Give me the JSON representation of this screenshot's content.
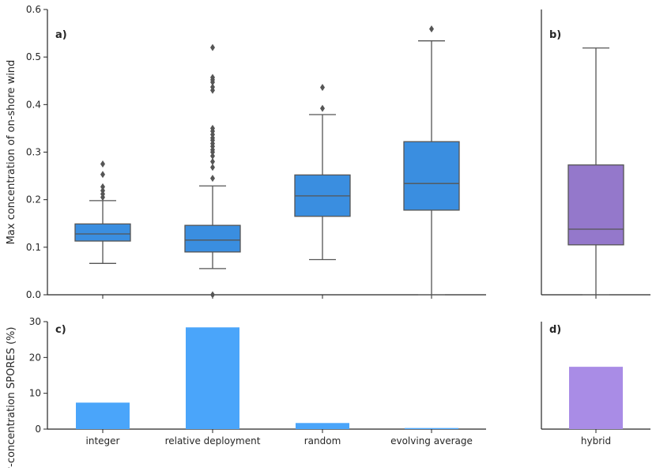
{
  "chart_data": [
    {
      "id": "a",
      "type": "box",
      "panel_label": "a)",
      "ylabel": "Max concentration of on-shore wind",
      "ylim": [
        0,
        0.6
      ],
      "yticks": [
        0.0,
        0.1,
        0.2,
        0.3,
        0.4,
        0.5,
        0.6
      ],
      "ytick_labels": [
        "0.0",
        "0.1",
        "0.2",
        "0.3",
        "0.4",
        "0.5",
        "0.6"
      ],
      "color": "#3a8ee0",
      "boxes": [
        {
          "name": "integer",
          "whislo": 0.066,
          "q1": 0.113,
          "med": 0.128,
          "q3": 0.149,
          "whishi": 0.198,
          "fliers": [
            0.205,
            0.212,
            0.219,
            0.227,
            0.253,
            0.275
          ]
        },
        {
          "name": "relative deployment",
          "whislo": 0.055,
          "q1": 0.09,
          "med": 0.115,
          "q3": 0.146,
          "whishi": 0.229,
          "fliers": [
            0.0,
            0.245,
            0.268,
            0.28,
            0.292,
            0.3,
            0.305,
            0.312,
            0.318,
            0.325,
            0.33,
            0.337,
            0.344,
            0.35,
            0.43,
            0.437,
            0.447,
            0.452,
            0.457,
            0.52
          ]
        },
        {
          "name": "random",
          "whislo": 0.074,
          "q1": 0.165,
          "med": 0.208,
          "q3": 0.252,
          "whishi": 0.379,
          "fliers": [
            0.392,
            0.436
          ]
        },
        {
          "name": "evolving average",
          "whislo": 0.0,
          "q1": 0.178,
          "med": 0.234,
          "q3": 0.322,
          "whishi": 0.534,
          "fliers": [
            0.559
          ]
        }
      ]
    },
    {
      "id": "b",
      "type": "box",
      "panel_label": "b)",
      "ylim": [
        0,
        0.6
      ],
      "color": "#9478cb",
      "boxes": [
        {
          "name": "hybrid",
          "whislo": 0.0,
          "q1": 0.105,
          "med": 0.138,
          "q3": 0.273,
          "whishi": 0.519,
          "fliers": []
        }
      ]
    },
    {
      "id": "c",
      "type": "bar",
      "panel_label": "c)",
      "ylabel": "Low-concentration SPORES (%)",
      "ylim": [
        0,
        30
      ],
      "yticks": [
        0,
        10,
        20,
        30
      ],
      "ytick_labels": [
        "0",
        "10",
        "20",
        "30"
      ],
      "color": "#4aa5fa",
      "categories": [
        "integer",
        "relative deployment",
        "random",
        "evolving average"
      ],
      "values": [
        7.4,
        28.4,
        1.7,
        0.3
      ]
    },
    {
      "id": "d",
      "type": "bar",
      "panel_label": "d)",
      "ylim": [
        0,
        30
      ],
      "color": "#a98ce6",
      "categories": [
        "hybrid"
      ],
      "values": [
        17.4
      ]
    }
  ]
}
